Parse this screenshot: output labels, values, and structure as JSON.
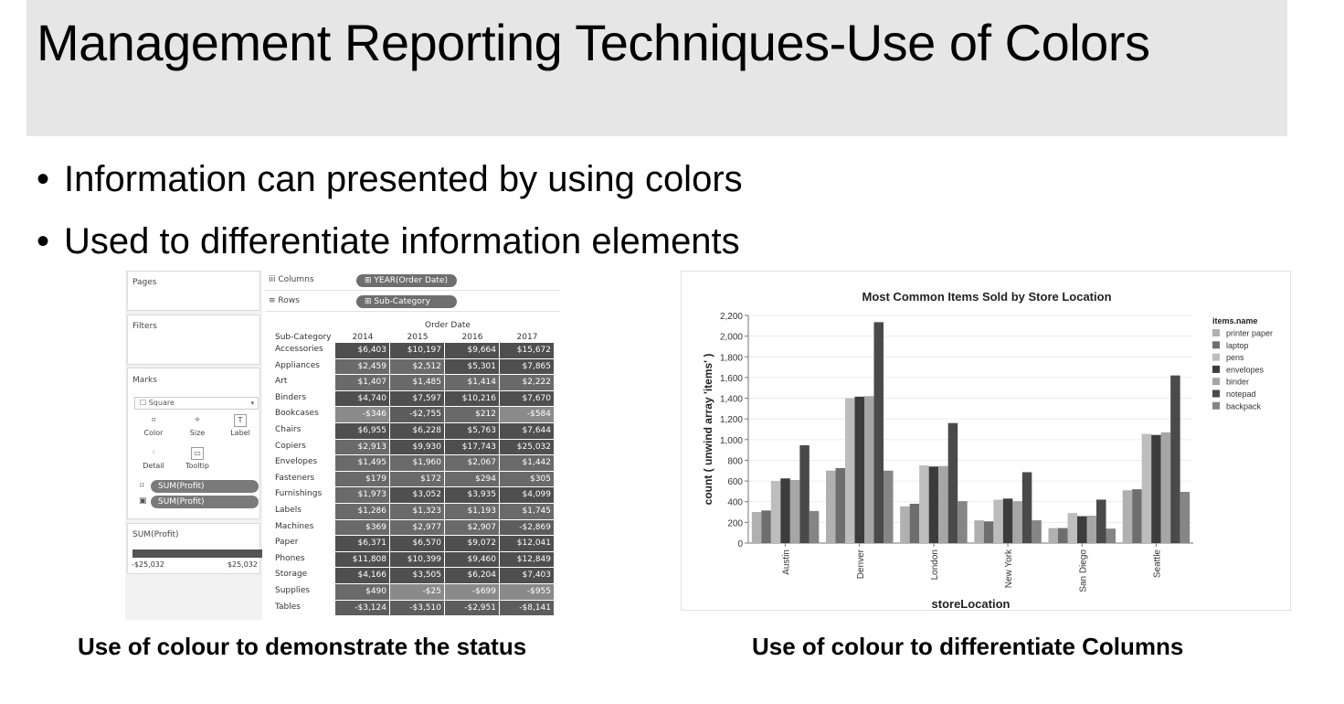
{
  "slide": {
    "title": "Management Reporting Techniques-Use of Colors",
    "bullets": [
      "Information can presented by using colors",
      "Used to differentiate information elements"
    ],
    "captions": [
      "Use of colour to demonstrate the status",
      "Use of colour to differentiate Columns"
    ]
  },
  "tableau": {
    "pages_label": "Pages",
    "filters_label": "Filters",
    "marks_label": "Marks",
    "mark_type": "Square",
    "mark_buttons": [
      {
        "label": "Color",
        "icon": "color-icon"
      },
      {
        "label": "Size",
        "icon": "size-icon"
      },
      {
        "label": "Label",
        "icon": "label-icon"
      },
      {
        "label": "Detail",
        "icon": "detail-icon"
      },
      {
        "label": "Tooltip",
        "icon": "tooltip-icon"
      }
    ],
    "mark_pills": [
      "SUM(Profit)",
      "SUM(Profit)"
    ],
    "legend_title": "SUM(Profit)",
    "legend_min": "-$25,032",
    "legend_max": "$25,032",
    "columns_label": "Columns",
    "columns_pill": "YEAR(Order Date)",
    "rows_label": "Rows",
    "rows_pill": "Sub-Category",
    "header_order_date": "Order Date",
    "header_subcategory": "Sub-Category",
    "years": [
      "2014",
      "2015",
      "2016",
      "2017"
    ],
    "rows": [
      {
        "cat": "Accessories",
        "vals": [
          "$6,403",
          "$10,197",
          "$9,664",
          "$15,672"
        ]
      },
      {
        "cat": "Appliances",
        "vals": [
          "$2,459",
          "$2,512",
          "$5,301",
          "$7,865"
        ]
      },
      {
        "cat": "Art",
        "vals": [
          "$1,407",
          "$1,485",
          "$1,414",
          "$2,222"
        ]
      },
      {
        "cat": "Binders",
        "vals": [
          "$4,740",
          "$7,597",
          "$10,216",
          "$7,670"
        ]
      },
      {
        "cat": "Bookcases",
        "vals": [
          "-$346",
          "-$2,755",
          "$212",
          "-$584"
        ]
      },
      {
        "cat": "Chairs",
        "vals": [
          "$6,955",
          "$6,228",
          "$5,763",
          "$7,644"
        ]
      },
      {
        "cat": "Copiers",
        "vals": [
          "$2,913",
          "$9,930",
          "$17,743",
          "$25,032"
        ]
      },
      {
        "cat": "Envelopes",
        "vals": [
          "$1,495",
          "$1,960",
          "$2,067",
          "$1,442"
        ]
      },
      {
        "cat": "Fasteners",
        "vals": [
          "$179",
          "$172",
          "$294",
          "$305"
        ]
      },
      {
        "cat": "Furnishings",
        "vals": [
          "$1,973",
          "$3,052",
          "$3,935",
          "$4,099"
        ]
      },
      {
        "cat": "Labels",
        "vals": [
          "$1,286",
          "$1,323",
          "$1,193",
          "$1,745"
        ]
      },
      {
        "cat": "Machines",
        "vals": [
          "$369",
          "$2,977",
          "$2,907",
          "-$2,869"
        ]
      },
      {
        "cat": "Paper",
        "vals": [
          "$6,371",
          "$6,570",
          "$9,072",
          "$12,041"
        ]
      },
      {
        "cat": "Phones",
        "vals": [
          "$11,808",
          "$10,399",
          "$9,460",
          "$12,849"
        ]
      },
      {
        "cat": "Storage",
        "vals": [
          "$4,166",
          "$3,505",
          "$6,204",
          "$7,403"
        ]
      },
      {
        "cat": "Supplies",
        "vals": [
          "$490",
          "-$25",
          "-$699",
          "-$955"
        ]
      },
      {
        "cat": "Tables",
        "vals": [
          "-$3,124",
          "-$3,510",
          "-$2,951",
          "-$8,141"
        ]
      }
    ]
  },
  "chart_data": {
    "type": "bar",
    "title": "Most Common Items Sold by Store Location",
    "xlabel": "storeLocation",
    "ylabel": "count ( unwind array 'items' )",
    "ylim": [
      0,
      2200
    ],
    "yticks": [
      "0",
      "200",
      "400",
      "600",
      "800",
      "1,000",
      "1,200",
      "1,400",
      "1,600",
      "1,800",
      "2,000",
      "2,200"
    ],
    "legend_title": "items.name",
    "legend_position": "right",
    "categories": [
      "Austin",
      "Denver",
      "London",
      "New York",
      "San Diego",
      "Seattle"
    ],
    "series": [
      {
        "name": "printer paper",
        "color": "#b0b0b0",
        "values": [
          300,
          700,
          355,
          220,
          145,
          510
        ]
      },
      {
        "name": "laptop",
        "color": "#6e6e6e",
        "values": [
          315,
          725,
          380,
          210,
          145,
          520
        ]
      },
      {
        "name": "pens",
        "color": "#bdbdbd",
        "values": [
          600,
          1400,
          750,
          420,
          290,
          1055
        ]
      },
      {
        "name": "envelopes",
        "color": "#3c3c3c",
        "values": [
          625,
          1415,
          740,
          430,
          260,
          1045
        ]
      },
      {
        "name": "binder",
        "color": "#a6a6a6",
        "values": [
          610,
          1420,
          745,
          405,
          265,
          1070
        ]
      },
      {
        "name": "notepad",
        "color": "#4a4a4a",
        "values": [
          945,
          2135,
          1160,
          685,
          420,
          1620
        ]
      },
      {
        "name": "backpack",
        "color": "#858585",
        "values": [
          310,
          700,
          405,
          220,
          140,
          495
        ]
      }
    ]
  }
}
